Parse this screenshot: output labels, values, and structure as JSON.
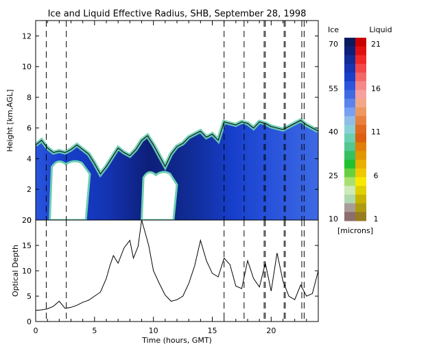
{
  "chart_data": [
    {
      "type": "heatmap",
      "title": "Ice and Liquid Effective Radius, SHB, September 28, 1998",
      "ylabel": "Height [km,AGL]",
      "xlim": [
        0,
        24
      ],
      "ylim": [
        0,
        13
      ],
      "yticks": [
        "0",
        "2",
        "4",
        "6",
        "8",
        "10",
        "12"
      ],
      "cloud_top_km": [
        [
          0.0,
          4.9
        ],
        [
          0.5,
          5.2
        ],
        [
          1.0,
          4.7
        ],
        [
          1.5,
          4.4
        ],
        [
          2.0,
          4.5
        ],
        [
          2.5,
          4.4
        ],
        [
          3.0,
          4.6
        ],
        [
          3.5,
          4.9
        ],
        [
          4.0,
          4.6
        ],
        [
          4.5,
          4.3
        ],
        [
          5.0,
          3.7
        ],
        [
          5.5,
          3.0
        ],
        [
          6.0,
          3.5
        ],
        [
          6.5,
          4.1
        ],
        [
          7.0,
          4.7
        ],
        [
          7.5,
          4.4
        ],
        [
          8.0,
          4.2
        ],
        [
          8.5,
          4.6
        ],
        [
          9.0,
          5.2
        ],
        [
          9.5,
          5.5
        ],
        [
          10.0,
          4.9
        ],
        [
          10.5,
          4.2
        ],
        [
          11.0,
          3.5
        ],
        [
          11.5,
          4.3
        ],
        [
          12.0,
          4.8
        ],
        [
          12.5,
          5.0
        ],
        [
          13.0,
          5.4
        ],
        [
          13.5,
          5.6
        ],
        [
          14.0,
          5.8
        ],
        [
          14.5,
          5.4
        ],
        [
          15.0,
          5.6
        ],
        [
          15.5,
          5.2
        ],
        [
          16.0,
          6.4
        ],
        [
          16.5,
          6.3
        ],
        [
          17.0,
          6.2
        ],
        [
          17.5,
          6.4
        ],
        [
          18.0,
          6.3
        ],
        [
          18.5,
          6.0
        ],
        [
          19.0,
          6.4
        ],
        [
          19.5,
          6.3
        ],
        [
          20.0,
          6.1
        ],
        [
          20.5,
          6.0
        ],
        [
          21.0,
          5.9
        ],
        [
          21.5,
          6.1
        ],
        [
          22.0,
          6.3
        ],
        [
          22.5,
          6.5
        ],
        [
          23.0,
          6.2
        ],
        [
          23.5,
          6.0
        ],
        [
          24.0,
          5.8
        ]
      ],
      "clear_gaps": [
        {
          "x": [
            1.2,
            4.6
          ],
          "y": [
            0.0,
            3.9
          ]
        },
        {
          "x": [
            9.0,
            12.0
          ],
          "y": [
            0.0,
            3.2
          ]
        }
      ],
      "dashed_lines_hours": [
        0.9,
        2.6,
        16.0,
        17.7,
        19.4,
        19.5,
        21.1,
        21.2,
        22.6,
        22.8
      ],
      "colorbar": {
        "ice_header": "Ice",
        "liquid_header": "Liquid",
        "ice_ticks": [
          "70",
          "55",
          "40",
          "25",
          "10"
        ],
        "liquid_ticks": [
          "21",
          "16",
          "11",
          "6",
          "1"
        ],
        "unit": "[microns]",
        "colors": [
          "#0b1a5c",
          "#0d1f78",
          "#102c96",
          "#1434b4",
          "#173fcc",
          "#2a55dc",
          "#3e6ae4",
          "#5a84ec",
          "#78a0f2",
          "#8fbde8",
          "#8ad0d8",
          "#6ccfb2",
          "#54c690",
          "#36c060",
          "#20c030",
          "#66d040",
          "#a8e070",
          "#cdeab8",
          "#b0d8b0",
          "#a89c98",
          "#8c6e6c"
        ],
        "liquid_colors": [
          "#c80000",
          "#e01010",
          "#f02828",
          "#f24848",
          "#f46868",
          "#f68888",
          "#f6a0a0",
          "#f2a888",
          "#ec9860",
          "#e88040",
          "#e06a20",
          "#dc6010",
          "#e08008",
          "#e09800",
          "#e8b000",
          "#f0c800",
          "#f8e800",
          "#e0d000",
          "#c8b400",
          "#b09a10",
          "#987c20"
        ]
      }
    },
    {
      "type": "line",
      "ylabel": "Optical Depth",
      "xlabel": "Time (hours, GMT)",
      "xlim": [
        0,
        24
      ],
      "ylim": [
        0,
        20
      ],
      "xticks": [
        "0",
        "5",
        "10",
        "15",
        "20"
      ],
      "yticks": [
        "0",
        "5",
        "10",
        "15",
        "20"
      ],
      "x": [
        0.0,
        0.5,
        1.0,
        1.5,
        2.0,
        2.5,
        3.0,
        3.5,
        4.0,
        4.5,
        5.0,
        5.5,
        6.0,
        6.3,
        6.6,
        7.0,
        7.5,
        8.0,
        8.3,
        8.7,
        9.0,
        9.3,
        9.6,
        10.0,
        10.5,
        11.0,
        11.5,
        12.0,
        12.5,
        13.0,
        13.5,
        14.0,
        14.5,
        15.0,
        15.5,
        16.0,
        16.5,
        17.0,
        17.5,
        18.0,
        18.5,
        19.0,
        19.5,
        20.0,
        20.5,
        21.0,
        21.5,
        22.0,
        22.5,
        23.0,
        23.5,
        24.0
      ],
      "y": [
        2.2,
        2.3,
        2.5,
        3.0,
        4.0,
        2.6,
        2.8,
        3.2,
        3.8,
        4.2,
        5.0,
        5.8,
        8.5,
        11.0,
        13.0,
        11.5,
        14.5,
        16.0,
        12.5,
        14.8,
        20.0,
        17.5,
        15.0,
        10.0,
        7.5,
        5.2,
        4.0,
        4.3,
        5.0,
        7.5,
        11.0,
        16.0,
        12.0,
        9.5,
        8.8,
        12.5,
        11.2,
        7.0,
        6.5,
        12.0,
        8.5,
        6.8,
        11.5,
        6.0,
        13.5,
        8.0,
        5.0,
        4.3,
        7.2,
        5.0,
        5.5,
        10.0
      ],
      "dashed_lines_hours": [
        0.9,
        2.6,
        16.0,
        17.7,
        19.4,
        19.5,
        21.1,
        21.2,
        22.6,
        22.8
      ]
    }
  ]
}
